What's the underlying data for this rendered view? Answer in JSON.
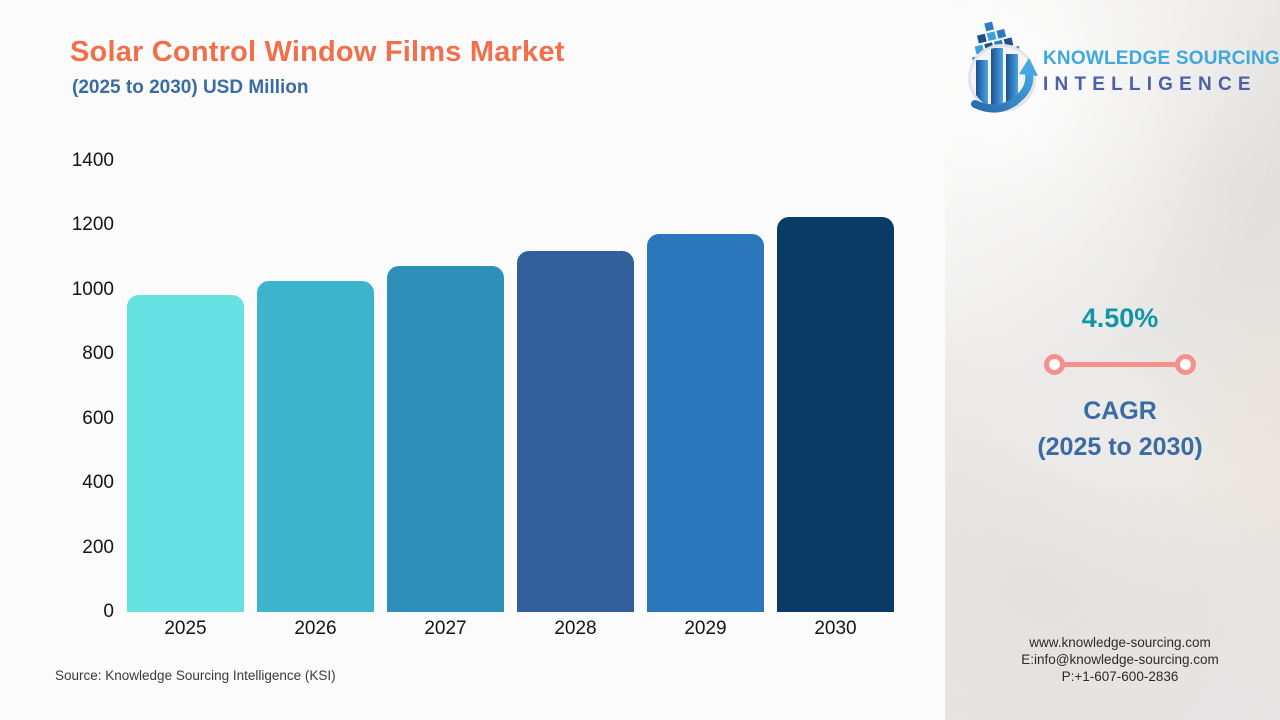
{
  "header": {
    "title": "Solar Control Window Films Market",
    "subtitle": "(2025 to 2030) USD Million",
    "title_color": "#f1704b",
    "subtitle_color": "#3a6ba5"
  },
  "logo": {
    "line1": "KNOWLEDGE SOURCING",
    "line2": "INTELLIGENCE",
    "line1_color": "#3fa9dc",
    "line2_color": "#4c5fa9",
    "icon": "ksi-globe-bar-chart-arrow-icon"
  },
  "chart_data": {
    "type": "bar",
    "title": "Solar Control Window Films Market",
    "subtitle": "(2025 to 2030) USD Million",
    "unit": "USD Million",
    "categories": [
      "2025",
      "2026",
      "2027",
      "2028",
      "2029",
      "2030"
    ],
    "values": [
      984,
      1028,
      1074,
      1122,
      1173,
      1226
    ],
    "bar_colors": [
      "#64e1e0",
      "#3cb5cc",
      "#2e8fb8",
      "#305f9b",
      "#2c76bb",
      "#0a3a66"
    ],
    "ylim": [
      0,
      1400
    ],
    "yticks": [
      0,
      200,
      400,
      600,
      800,
      1000,
      1200,
      1400
    ],
    "ytick_step": 200,
    "grid": false,
    "legend": "none",
    "bar_corner": "rounded-top"
  },
  "cagr": {
    "value": "4.50%",
    "label_line1": "CAGR",
    "label_line2": "(2025 to 2030)",
    "value_color": "#1295a6",
    "label_color": "#3a6ba5",
    "divider_color": "#f5918d"
  },
  "source_note": "Source: Knowledge Sourcing Intelligence (KSI)",
  "contact": {
    "website": "www.knowledge-sourcing.com",
    "email": "E:info@knowledge-sourcing.com",
    "phone": "P:+1-607-600-2836"
  }
}
